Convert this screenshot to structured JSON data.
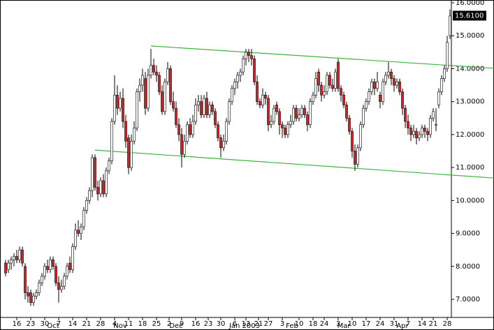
{
  "chart_data": {
    "type": "candlestick",
    "ohlc": [
      [
        8.1,
        8.2,
        7.7,
        7.8
      ],
      [
        7.9,
        8.2,
        7.8,
        8.1
      ],
      [
        8.1,
        8.3,
        7.9,
        8.2
      ],
      [
        8.2,
        8.4,
        8.0,
        8.3
      ],
      [
        8.3,
        8.5,
        8.1,
        8.2
      ],
      [
        8.2,
        8.6,
        8.1,
        8.5
      ],
      [
        8.5,
        8.6,
        8.0,
        8.1
      ],
      [
        8.0,
        8.1,
        7.0,
        7.2
      ],
      [
        7.2,
        7.4,
        6.9,
        7.1
      ],
      [
        7.2,
        7.3,
        6.8,
        6.9
      ],
      [
        6.9,
        7.2,
        6.8,
        7.1
      ],
      [
        7.1,
        7.3,
        7.0,
        7.2
      ],
      [
        7.2,
        7.6,
        7.1,
        7.5
      ],
      [
        7.5,
        7.8,
        7.4,
        7.7
      ],
      [
        7.7,
        8.1,
        7.6,
        8.0
      ],
      [
        8.0,
        8.2,
        7.8,
        7.9
      ],
      [
        7.9,
        8.3,
        7.8,
        8.2
      ],
      [
        8.2,
        8.3,
        7.9,
        8.0
      ],
      [
        8.0,
        8.1,
        7.4,
        7.5
      ],
      [
        7.5,
        7.7,
        6.9,
        7.3
      ],
      [
        7.3,
        7.6,
        7.2,
        7.4
      ],
      [
        7.4,
        7.8,
        7.3,
        7.7
      ],
      [
        7.7,
        8.1,
        7.6,
        8.0
      ],
      [
        8.1,
        8.3,
        7.8,
        7.9
      ],
      [
        7.9,
        8.7,
        7.8,
        8.6
      ],
      [
        8.6,
        9.3,
        8.5,
        9.1
      ],
      [
        9.1,
        9.4,
        8.9,
        9.0
      ],
      [
        9.0,
        9.3,
        8.8,
        9.2
      ],
      [
        9.2,
        9.8,
        9.1,
        9.7
      ],
      [
        9.7,
        10.1,
        9.6,
        10.0
      ],
      [
        10.0,
        10.4,
        9.9,
        10.3
      ],
      [
        10.3,
        11.4,
        10.1,
        11.3
      ],
      [
        11.3,
        11.4,
        10.3,
        10.4
      ],
      [
        10.4,
        10.6,
        10.0,
        10.2
      ],
      [
        10.2,
        10.7,
        10.1,
        10.6
      ],
      [
        10.6,
        10.8,
        10.1,
        10.2
      ],
      [
        10.2,
        11.0,
        10.1,
        10.9
      ],
      [
        10.9,
        11.3,
        10.8,
        11.2
      ],
      [
        11.2,
        12.5,
        11.1,
        12.4
      ],
      [
        12.4,
        13.8,
        12.3,
        13.2
      ],
      [
        13.2,
        13.5,
        12.6,
        12.8
      ],
      [
        12.8,
        13.3,
        12.7,
        13.1
      ],
      [
        13.1,
        13.4,
        12.2,
        12.4
      ],
      [
        12.4,
        12.6,
        11.6,
        11.8
      ],
      [
        11.9,
        12.0,
        10.8,
        11.0
      ],
      [
        11.0,
        12.0,
        10.9,
        11.8
      ],
      [
        11.8,
        12.4,
        11.7,
        12.2
      ],
      [
        12.2,
        13.4,
        12.1,
        13.3
      ],
      [
        13.3,
        13.7,
        13.0,
        13.5
      ],
      [
        13.5,
        14.0,
        13.3,
        13.8
      ],
      [
        13.7,
        13.9,
        12.6,
        12.8
      ],
      [
        12.8,
        14.0,
        12.7,
        13.8
      ],
      [
        13.8,
        14.6,
        13.7,
        14.1
      ],
      [
        14.1,
        14.3,
        13.8,
        13.9
      ],
      [
        13.9,
        14.1,
        13.6,
        13.8
      ],
      [
        13.8,
        13.9,
        13.2,
        13.3
      ],
      [
        13.3,
        13.5,
        12.6,
        12.7
      ],
      [
        12.7,
        13.7,
        12.6,
        13.6
      ],
      [
        13.6,
        14.2,
        13.5,
        14.0
      ],
      [
        14.0,
        14.1,
        12.9,
        13.0
      ],
      [
        13.0,
        13.3,
        12.7,
        12.8
      ],
      [
        12.8,
        13.0,
        12.2,
        12.3
      ],
      [
        12.3,
        12.5,
        11.8,
        12.0
      ],
      [
        12.0,
        12.2,
        11.0,
        11.4
      ],
      [
        11.4,
        12.0,
        11.3,
        11.8
      ],
      [
        11.8,
        12.4,
        11.7,
        12.3
      ],
      [
        12.3,
        12.5,
        11.9,
        12.0
      ],
      [
        12.0,
        12.6,
        11.9,
        12.4
      ],
      [
        12.4,
        13.1,
        12.3,
        12.9
      ],
      [
        12.9,
        13.2,
        12.7,
        13.0
      ],
      [
        13.0,
        13.2,
        12.5,
        12.6
      ],
      [
        12.6,
        13.2,
        12.5,
        13.1
      ],
      [
        13.1,
        13.3,
        12.5,
        12.6
      ],
      [
        12.6,
        13.0,
        12.5,
        12.9
      ],
      [
        12.9,
        13.0,
        12.6,
        12.7
      ],
      [
        12.7,
        12.8,
        12.2,
        12.3
      ],
      [
        12.3,
        12.4,
        11.8,
        11.9
      ],
      [
        11.9,
        12.0,
        11.3,
        11.6
      ],
      [
        11.6,
        12.0,
        11.5,
        11.8
      ],
      [
        11.8,
        12.5,
        11.7,
        12.4
      ],
      [
        12.4,
        13.1,
        12.3,
        13.0
      ],
      [
        13.0,
        13.5,
        12.9,
        13.4
      ],
      [
        13.4,
        13.7,
        13.2,
        13.6
      ],
      [
        13.6,
        13.9,
        13.4,
        13.8
      ],
      [
        13.8,
        14.0,
        13.6,
        13.9
      ],
      [
        13.9,
        14.4,
        13.8,
        14.3
      ],
      [
        14.3,
        14.6,
        14.1,
        14.5
      ],
      [
        14.5,
        14.6,
        14.2,
        14.4
      ],
      [
        14.4,
        14.6,
        14.1,
        14.3
      ],
      [
        14.3,
        14.4,
        13.5,
        13.6
      ],
      [
        13.6,
        13.8,
        12.9,
        13.0
      ],
      [
        13.0,
        13.1,
        12.8,
        12.9
      ],
      [
        12.9,
        13.4,
        12.8,
        13.2
      ],
      [
        13.2,
        13.3,
        12.9,
        13.1
      ],
      [
        13.1,
        13.2,
        12.1,
        12.3
      ],
      [
        12.3,
        12.6,
        12.2,
        12.4
      ],
      [
        12.4,
        12.9,
        12.3,
        12.8
      ],
      [
        12.9,
        13.0,
        12.6,
        12.7
      ],
      [
        12.7,
        12.8,
        12.0,
        12.3
      ],
      [
        12.3,
        12.4,
        11.9,
        12.2
      ],
      [
        12.2,
        12.3,
        11.9,
        12.0
      ],
      [
        12.0,
        12.4,
        11.9,
        12.3
      ],
      [
        12.3,
        12.6,
        12.2,
        12.4
      ],
      [
        12.4,
        12.9,
        12.3,
        12.8
      ],
      [
        12.8,
        12.9,
        12.4,
        12.5
      ],
      [
        12.5,
        12.8,
        12.4,
        12.6
      ],
      [
        12.6,
        12.9,
        12.5,
        12.8
      ],
      [
        12.8,
        12.9,
        12.5,
        12.6
      ],
      [
        12.6,
        12.7,
        12.1,
        12.3
      ],
      [
        12.3,
        13.1,
        12.2,
        13.0
      ],
      [
        13.0,
        13.3,
        12.9,
        13.2
      ],
      [
        13.2,
        13.9,
        13.1,
        13.7
      ],
      [
        13.9,
        14.0,
        13.3,
        13.5
      ],
      [
        13.5,
        13.6,
        13.0,
        13.2
      ],
      [
        13.2,
        13.5,
        13.1,
        13.3
      ],
      [
        13.3,
        13.9,
        13.2,
        13.8
      ],
      [
        13.8,
        13.9,
        13.4,
        13.5
      ],
      [
        13.5,
        13.7,
        13.3,
        13.4
      ],
      [
        13.4,
        14.0,
        13.3,
        13.9
      ],
      [
        14.2,
        14.3,
        13.3,
        13.4
      ],
      [
        13.4,
        13.5,
        13.0,
        13.2
      ],
      [
        13.2,
        13.3,
        12.8,
        12.9
      ],
      [
        12.9,
        13.0,
        12.4,
        12.5
      ],
      [
        12.5,
        12.6,
        12.0,
        12.1
      ],
      [
        12.1,
        12.2,
        11.3,
        11.5
      ],
      [
        11.5,
        11.7,
        10.9,
        11.1
      ],
      [
        11.1,
        11.7,
        11.0,
        11.6
      ],
      [
        11.6,
        12.4,
        11.5,
        12.3
      ],
      [
        12.3,
        12.9,
        12.2,
        12.8
      ],
      [
        12.8,
        13.1,
        12.7,
        13.0
      ],
      [
        13.0,
        13.4,
        12.9,
        13.3
      ],
      [
        13.3,
        13.7,
        13.2,
        13.6
      ],
      [
        13.6,
        13.7,
        13.2,
        13.4
      ],
      [
        13.4,
        13.9,
        13.3,
        13.6
      ],
      [
        13.2,
        13.3,
        12.8,
        13.0
      ],
      [
        13.0,
        13.7,
        12.9,
        13.6
      ],
      [
        13.6,
        13.9,
        13.5,
        13.8
      ],
      [
        13.8,
        14.2,
        13.7,
        13.9
      ],
      [
        13.9,
        14.0,
        13.5,
        13.7
      ],
      [
        13.7,
        13.8,
        13.3,
        13.5
      ],
      [
        13.5,
        13.7,
        13.4,
        13.6
      ],
      [
        13.6,
        13.7,
        13.2,
        13.3
      ],
      [
        13.3,
        13.4,
        12.6,
        12.8
      ],
      [
        12.8,
        12.9,
        12.2,
        12.4
      ],
      [
        12.4,
        12.6,
        12.0,
        12.2
      ],
      [
        12.2,
        12.3,
        11.8,
        12.0
      ],
      [
        12.0,
        12.3,
        11.9,
        12.1
      ],
      [
        12.1,
        12.2,
        11.7,
        11.9
      ],
      [
        11.9,
        12.1,
        11.8,
        12.0
      ],
      [
        12.0,
        12.3,
        11.9,
        12.2
      ],
      [
        12.2,
        12.3,
        11.9,
        12.1
      ],
      [
        12.1,
        12.2,
        11.8,
        12.0
      ],
      [
        12.0,
        12.6,
        11.9,
        12.5
      ],
      [
        12.5,
        12.8,
        12.4,
        12.7
      ],
      [
        12.3,
        12.8,
        12.1,
        12.3
      ],
      [
        12.9,
        13.4,
        12.8,
        13.3
      ],
      [
        13.3,
        13.8,
        13.2,
        13.7
      ],
      [
        13.7,
        14.1,
        13.6,
        14.0
      ],
      [
        14.0,
        15.0,
        13.9,
        14.8
      ],
      [
        15.0,
        15.8,
        14.9,
        15.6
      ]
    ],
    "up_color": "#ffffff",
    "down_color": "#d42020",
    "trendlines": [
      {
        "color": "#3cb43c",
        "points": [
          [
            52,
            14.69
          ],
          [
            175,
            14.01
          ]
        ]
      },
      {
        "color": "#3cb43c",
        "points": [
          [
            32,
            11.53
          ],
          [
            175,
            10.68
          ]
        ]
      }
    ],
    "last_price": {
      "value": 15.61,
      "label": "15.6100"
    },
    "xlim": [
      -2,
      159.5
    ],
    "ylim": [
      6.45,
      16.085
    ],
    "yticks": [
      {
        "value": 7,
        "label": "7.0000"
      },
      {
        "value": 8,
        "label": "8.0000"
      },
      {
        "value": 9,
        "label": "9.0000"
      },
      {
        "value": 10,
        "label": "10.0000"
      },
      {
        "value": 11,
        "label": "11.0000"
      },
      {
        "value": 12,
        "label": "12.0000"
      },
      {
        "value": 13,
        "label": "13.0000"
      },
      {
        "value": 14,
        "label": "14.0000"
      },
      {
        "value": 15,
        "label": "15.0000"
      },
      {
        "value": 16,
        "label": "16.0000"
      }
    ],
    "xticks": [
      {
        "value": 4,
        "label": "16"
      },
      {
        "value": 9,
        "label": "23"
      },
      {
        "value": 14,
        "label": "30"
      },
      {
        "value": 19,
        "label": "7"
      },
      {
        "value": 24,
        "label": "14"
      },
      {
        "value": 29,
        "label": "21"
      },
      {
        "value": 34,
        "label": "28"
      },
      {
        "value": 39,
        "label": "4"
      },
      {
        "value": 44,
        "label": "11"
      },
      {
        "value": 49,
        "label": "18"
      },
      {
        "value": 54,
        "label": "25"
      },
      {
        "value": 58.5,
        "label": "2"
      },
      {
        "value": 63,
        "label": "9"
      },
      {
        "value": 68,
        "label": "16"
      },
      {
        "value": 72.5,
        "label": "23"
      },
      {
        "value": 77,
        "label": "30"
      },
      {
        "value": 82,
        "label": "6"
      },
      {
        "value": 86,
        "label": "13"
      },
      {
        "value": 90.5,
        "label": "21"
      },
      {
        "value": 94,
        "label": "27"
      },
      {
        "value": 99,
        "label": "3"
      },
      {
        "value": 105,
        "label": "10"
      },
      {
        "value": 110,
        "label": "18"
      },
      {
        "value": 114,
        "label": "24"
      },
      {
        "value": 119,
        "label": "3"
      },
      {
        "value": 124,
        "label": "10"
      },
      {
        "value": 129,
        "label": "17"
      },
      {
        "value": 134,
        "label": "24"
      },
      {
        "value": 139,
        "label": "31"
      },
      {
        "value": 144,
        "label": "7"
      },
      {
        "value": 149,
        "label": "14"
      },
      {
        "value": 153,
        "label": "21"
      },
      {
        "value": 158,
        "label": "28"
      }
    ],
    "month_ticks": [
      {
        "value": 17,
        "label": "Oct"
      },
      {
        "value": 41,
        "label": "Nov"
      },
      {
        "value": 61,
        "label": "Dec"
      },
      {
        "value": 85.5,
        "label": "Jan 2003"
      },
      {
        "value": 102.5,
        "label": "Feb"
      },
      {
        "value": 121,
        "label": "Mar"
      },
      {
        "value": 142,
        "label": "Apr"
      }
    ]
  }
}
